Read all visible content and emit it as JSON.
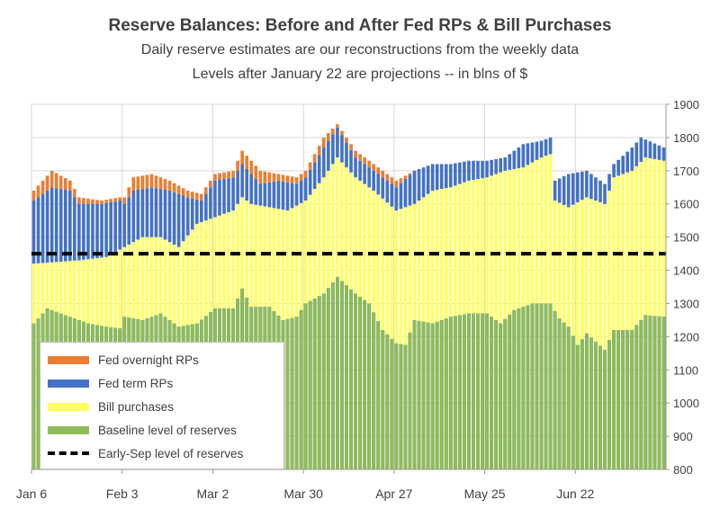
{
  "chart_data": {
    "type": "bar",
    "stacked": true,
    "title": "Reserve Balances:  Before and After Fed RPs & Bill Purchases",
    "subtitle_lines": [
      "Daily reserve  estimates are our reconstructions from the weekly data",
      "Levels after January 22 are projections -- in blns of $"
    ],
    "ylim": [
      800,
      1900
    ],
    "y_ticks": [
      "800",
      "900",
      "1000",
      "1100",
      "1200",
      "1300",
      "1400",
      "1500",
      "1600",
      "1700",
      "1800",
      "1900"
    ],
    "y_axis_side": "right",
    "x_tick_labels": [
      "Jan 6",
      "Feb 3",
      "Mar 2",
      "Mar 30",
      "Apr 27",
      "May 25",
      "Jun 22"
    ],
    "x_tick_index": [
      0,
      20,
      40,
      60,
      80,
      100,
      120
    ],
    "n_days": 140,
    "grid": true,
    "legend_placement": "bottom-left",
    "series": [
      {
        "name": "Baseline level of reserves",
        "color": "#8fbc5a"
      },
      {
        "name": "Bill purchases",
        "color": "#ffff66"
      },
      {
        "name": "Fed term RPs",
        "color": "#4472c4"
      },
      {
        "name": "Fed overnight RPs",
        "color": "#ed7d31"
      },
      {
        "name": "Early-Sep level of reserves",
        "color": "#000000",
        "value": 1450
      }
    ],
    "baseline_keypoints": [
      [
        0,
        1240
      ],
      [
        3,
        1285
      ],
      [
        8,
        1260
      ],
      [
        12,
        1240
      ],
      [
        16,
        1230
      ],
      [
        19,
        1225
      ],
      [
        20,
        1260
      ],
      [
        24,
        1250
      ],
      [
        28,
        1270
      ],
      [
        32,
        1230
      ],
      [
        36,
        1240
      ],
      [
        40,
        1285
      ],
      [
        44,
        1285
      ],
      [
        46,
        1345
      ],
      [
        48,
        1290
      ],
      [
        52,
        1290
      ],
      [
        55,
        1250
      ],
      [
        58,
        1260
      ],
      [
        60,
        1300
      ],
      [
        64,
        1330
      ],
      [
        67,
        1380
      ],
      [
        71,
        1330
      ],
      [
        74,
        1300
      ],
      [
        77,
        1220
      ],
      [
        80,
        1180
      ],
      [
        82,
        1175
      ],
      [
        84,
        1250
      ],
      [
        88,
        1240
      ],
      [
        92,
        1260
      ],
      [
        96,
        1270
      ],
      [
        100,
        1270
      ],
      [
        103,
        1240
      ],
      [
        106,
        1280
      ],
      [
        110,
        1300
      ],
      [
        114,
        1300
      ],
      [
        116,
        1255
      ],
      [
        118,
        1230
      ],
      [
        120,
        1175
      ],
      [
        122,
        1210
      ],
      [
        126,
        1160
      ],
      [
        128,
        1220
      ],
      [
        132,
        1220
      ],
      [
        135,
        1265
      ],
      [
        139,
        1260
      ]
    ],
    "bill_keypoints": [
      [
        0,
        1420
      ],
      [
        10,
        1430
      ],
      [
        16,
        1440
      ],
      [
        20,
        1470
      ],
      [
        24,
        1500
      ],
      [
        28,
        1500
      ],
      [
        32,
        1470
      ],
      [
        36,
        1540
      ],
      [
        40,
        1560
      ],
      [
        44,
        1580
      ],
      [
        46,
        1620
      ],
      [
        48,
        1600
      ],
      [
        52,
        1590
      ],
      [
        56,
        1580
      ],
      [
        60,
        1610
      ],
      [
        64,
        1680
      ],
      [
        67,
        1740
      ],
      [
        71,
        1680
      ],
      [
        75,
        1640
      ],
      [
        80,
        1580
      ],
      [
        84,
        1600
      ],
      [
        88,
        1640
      ],
      [
        92,
        1650
      ],
      [
        96,
        1670
      ],
      [
        100,
        1680
      ],
      [
        104,
        1700
      ],
      [
        108,
        1710
      ],
      [
        112,
        1740
      ],
      [
        114,
        1750
      ],
      [
        115,
        1610
      ],
      [
        118,
        1590
      ],
      [
        122,
        1620
      ],
      [
        126,
        1600
      ],
      [
        128,
        1680
      ],
      [
        132,
        1700
      ],
      [
        135,
        1740
      ],
      [
        139,
        1730
      ]
    ],
    "term_keypoints": [
      [
        0,
        1610
      ],
      [
        4,
        1650
      ],
      [
        8,
        1640
      ],
      [
        10,
        1600
      ],
      [
        15,
        1600
      ],
      [
        19,
        1610
      ],
      [
        20,
        1600
      ],
      [
        22,
        1640
      ],
      [
        26,
        1650
      ],
      [
        30,
        1640
      ],
      [
        34,
        1620
      ],
      [
        37,
        1610
      ],
      [
        40,
        1670
      ],
      [
        44,
        1680
      ],
      [
        46,
        1720
      ],
      [
        50,
        1660
      ],
      [
        54,
        1670
      ],
      [
        58,
        1660
      ],
      [
        60,
        1680
      ],
      [
        64,
        1770
      ],
      [
        67,
        1830
      ],
      [
        71,
        1740
      ],
      [
        75,
        1700
      ],
      [
        80,
        1650
      ],
      [
        84,
        1700
      ],
      [
        88,
        1720
      ],
      [
        92,
        1720
      ],
      [
        96,
        1730
      ],
      [
        100,
        1730
      ],
      [
        104,
        1740
      ],
      [
        108,
        1780
      ],
      [
        112,
        1790
      ],
      [
        114,
        1800
      ],
      [
        115,
        1670
      ],
      [
        118,
        1690
      ],
      [
        122,
        1700
      ],
      [
        126,
        1660
      ],
      [
        128,
        1720
      ],
      [
        132,
        1770
      ],
      [
        134,
        1800
      ],
      [
        139,
        1770
      ]
    ],
    "overnight_keypoints": [
      [
        0,
        1640
      ],
      [
        4,
        1700
      ],
      [
        8,
        1670
      ],
      [
        10,
        1620
      ],
      [
        15,
        1610
      ],
      [
        19,
        1620
      ],
      [
        20,
        1620
      ],
      [
        22,
        1680
      ],
      [
        26,
        1690
      ],
      [
        30,
        1670
      ],
      [
        34,
        1640
      ],
      [
        37,
        1630
      ],
      [
        40,
        1690
      ],
      [
        44,
        1700
      ],
      [
        46,
        1760
      ],
      [
        50,
        1700
      ],
      [
        54,
        1690
      ],
      [
        58,
        1680
      ],
      [
        60,
        1700
      ],
      [
        64,
        1800
      ],
      [
        67,
        1840
      ],
      [
        71,
        1760
      ],
      [
        75,
        1720
      ],
      [
        80,
        1670
      ],
      [
        84,
        1700
      ],
      [
        88,
        1720
      ],
      [
        92,
        1720
      ],
      [
        96,
        1730
      ],
      [
        100,
        1730
      ],
      [
        104,
        1740
      ],
      [
        108,
        1780
      ],
      [
        112,
        1790
      ],
      [
        114,
        1800
      ],
      [
        115,
        1670
      ],
      [
        118,
        1690
      ],
      [
        122,
        1700
      ],
      [
        126,
        1660
      ],
      [
        128,
        1720
      ],
      [
        132,
        1770
      ],
      [
        134,
        1800
      ],
      [
        139,
        1770
      ]
    ]
  }
}
